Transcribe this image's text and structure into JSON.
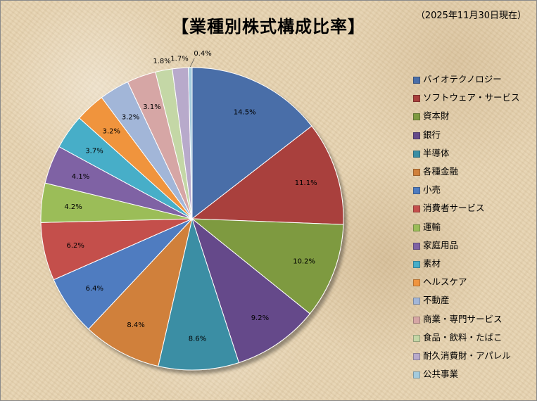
{
  "header": {
    "title": "【業種別株式構成比率】",
    "date_note": "（2025年11月30日現在）"
  },
  "chart_data": {
    "type": "pie",
    "title": "【業種別株式構成比率】",
    "categories": [
      "バイオテクノロジー",
      "ソフトウェア・サービス",
      "資本財",
      "銀行",
      "半導体",
      "各種金融",
      "小売",
      "消費者サービス",
      "運輸",
      "家庭用品",
      "素材",
      "ヘルスケア",
      "不動産",
      "商業・専門サービス",
      "食品・飲料・たばこ",
      "耐久消費財・アパレル",
      "公共事業"
    ],
    "values": [
      14.5,
      11.1,
      10.2,
      9.2,
      8.6,
      8.4,
      6.4,
      6.2,
      4.2,
      4.1,
      3.7,
      3.2,
      3.2,
      3.1,
      1.8,
      1.7,
      0.4
    ],
    "labels": [
      "14.5%",
      "11.1%",
      "10.2%",
      "9.2%",
      "8.6%",
      "8.4%",
      "6.4%",
      "6.2%",
      "4.2%",
      "4.1%",
      "3.7%",
      "3.2%",
      "3.2%",
      "3.1%",
      "1.8%",
      "1.7%",
      "0.4%"
    ],
    "colors": [
      "#4a6ea8",
      "#a9403c",
      "#7e9a40",
      "#654a8a",
      "#3a8ea4",
      "#d0803a",
      "#4f7cc0",
      "#c44f4c",
      "#9bbd58",
      "#7f62a4",
      "#47aec8",
      "#f0943e",
      "#a2b6d8",
      "#d6a6a5",
      "#c4d7a6",
      "#b8aacb",
      "#a4cbdd"
    ],
    "legend_position": "right"
  }
}
